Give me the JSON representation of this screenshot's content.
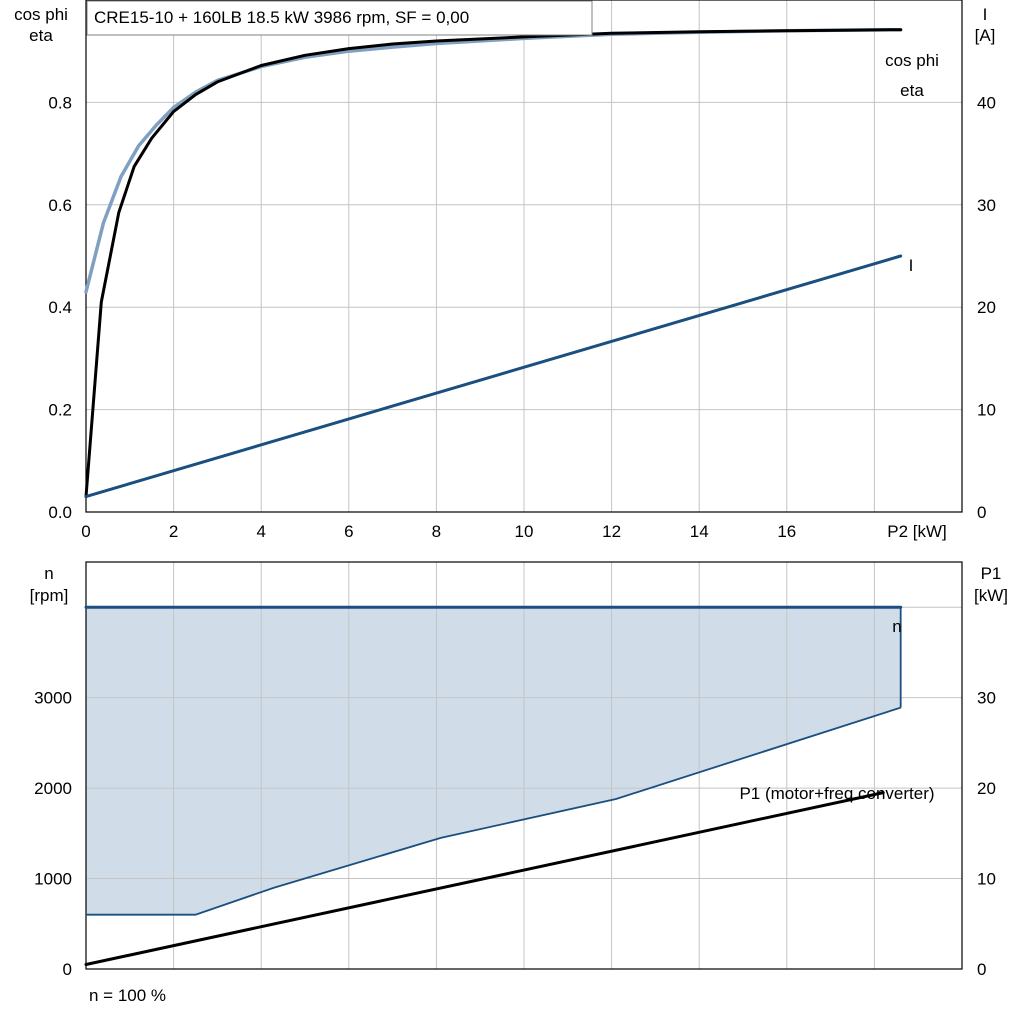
{
  "colors": {
    "cosphi": "#7fa0c0",
    "eta": "#000000",
    "current": "#1a4f80",
    "speed": "#1a4f80",
    "speed_fill": "#d0dde9",
    "p1": "#000000",
    "grid": "#c4c4c4"
  },
  "chart_data": [
    {
      "type": "line",
      "title": "CRE15-10 + 160LB   18.5 kW   3986 rpm, SF = 0,00",
      "xlabel": "P2 [kW]",
      "ylabel_left": [
        "cos phi",
        "eta"
      ],
      "ylabel_right": [
        "I",
        "[A]"
      ],
      "xlim": [
        0,
        20
      ],
      "ylim_left": [
        0,
        1.0
      ],
      "ylim_right": [
        0,
        50
      ],
      "x_ticks": [
        0,
        2,
        4,
        6,
        8,
        10,
        12,
        14,
        16
      ],
      "y_ticks_left": [
        0.0,
        0.2,
        0.4,
        0.6,
        0.8
      ],
      "y_tick_labels_left": [
        "0.0",
        "0.2",
        "0.4",
        "0.6",
        "0.8"
      ],
      "y_ticks_right": [
        0,
        10,
        20,
        30,
        40
      ],
      "grid": true,
      "series": [
        {
          "name": "cos phi",
          "axis": "left",
          "color_key": "cosphi",
          "x": [
            0,
            0.4,
            0.8,
            1.2,
            1.6,
            2.0,
            2.5,
            3.0,
            4.0,
            5.0,
            6.0,
            7.0,
            8.0,
            10.0,
            12.0,
            14.0,
            16.0,
            18.6
          ],
          "y": [
            0.43,
            0.565,
            0.655,
            0.715,
            0.755,
            0.79,
            0.82,
            0.843,
            0.87,
            0.888,
            0.9,
            0.908,
            0.915,
            0.925,
            0.933,
            0.937,
            0.94,
            0.942
          ]
        },
        {
          "name": "eta",
          "axis": "left",
          "color_key": "eta",
          "x": [
            0,
            0.35,
            0.75,
            1.1,
            1.5,
            2.0,
            2.5,
            3.0,
            4.0,
            5.0,
            6.0,
            7.0,
            8.0,
            10.0,
            12.0,
            14.0,
            16.0,
            18.6
          ],
          "y": [
            0.03,
            0.41,
            0.585,
            0.675,
            0.73,
            0.782,
            0.815,
            0.84,
            0.872,
            0.892,
            0.905,
            0.914,
            0.92,
            0.928,
            0.935,
            0.938,
            0.94,
            0.942
          ]
        },
        {
          "name": "I",
          "axis": "right",
          "color_key": "current",
          "x": [
            0,
            18.6
          ],
          "y": [
            1.5,
            25.0
          ]
        }
      ]
    },
    {
      "type": "area",
      "xlim": [
        0,
        20
      ],
      "ylabel_left": [
        "n",
        "[rpm]"
      ],
      "ylabel_right": [
        "P1",
        "[kW]"
      ],
      "ylim_left": [
        0,
        4500
      ],
      "ylim_right": [
        0,
        45
      ],
      "y_ticks_left": [
        0,
        1000,
        2000,
        3000
      ],
      "y_ticks_right": [
        0,
        10,
        20,
        30
      ],
      "grid": true,
      "footnote": "n = 100 %",
      "series": [
        {
          "name": "n",
          "axis": "left",
          "color_key": "speed",
          "x": [
            0,
            18.6
          ],
          "y": [
            4000,
            4000
          ]
        },
        {
          "name": "P1 (motor+freq.converter)",
          "axis": "right",
          "color_key": "p1",
          "x": [
            0,
            18.2
          ],
          "y": [
            0.5,
            19.5
          ]
        }
      ],
      "range_envelope": {
        "x_lower": [
          0,
          2.5,
          4.3,
          8.1,
          12.1,
          18.6
        ],
        "lower": [
          600,
          600,
          900,
          1450,
          1880,
          2890
        ],
        "x_upper": [
          0,
          18.6
        ],
        "upper": [
          4000,
          4000
        ]
      }
    }
  ]
}
